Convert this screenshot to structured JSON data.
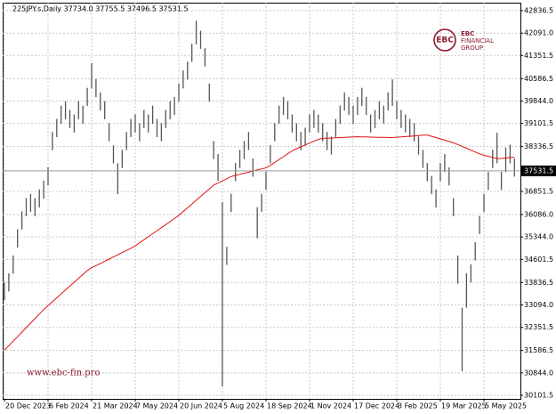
{
  "chart_data": {
    "type": "ohlc",
    "title": "225JPY.s,Daily  37734.0 37755.5 37496.5 37531.5",
    "watermark": "www.ebc-fin.pro",
    "logo": [
      "EBC",
      "FINANCIAL",
      "GROUP"
    ],
    "color": "#555555",
    "grid": true,
    "categories": [
      "20 Dec 2023",
      null,
      null,
      null,
      null,
      null,
      null,
      null,
      null,
      null,
      "6 Feb 2024",
      null,
      null,
      null,
      null,
      null,
      null,
      null,
      null,
      null,
      "21 Mar 2024",
      null,
      null,
      null,
      null,
      null,
      null,
      null,
      null,
      null,
      "7 May 2024",
      null,
      null,
      null,
      null,
      null,
      null,
      null,
      null,
      null,
      "20 Jun 2024",
      null,
      null,
      null,
      null,
      null,
      null,
      null,
      null,
      null,
      "5 Aug 2024",
      null,
      null,
      null,
      null,
      null,
      null,
      null,
      null,
      null,
      "18 Sep 2024",
      null,
      null,
      null,
      null,
      null,
      null,
      null,
      null,
      null,
      "1 Nov 2024",
      null,
      null,
      null,
      null,
      null,
      null,
      null,
      null,
      null,
      "17 Dec 2024",
      null,
      null,
      null,
      null,
      null,
      null,
      null,
      null,
      null,
      "3 Feb 2025",
      null,
      null,
      null,
      null,
      null,
      null,
      null,
      null,
      null,
      "19 Mar 2025",
      null,
      null,
      null,
      null,
      null,
      null,
      null,
      null,
      null,
      "5 May 2025",
      null,
      null,
      null,
      null,
      null,
      null,
      null
    ],
    "high": [
      33850,
      34140,
      34730,
      35600,
      36190,
      36630,
      36770,
      36630,
      36920,
      37210,
      37650,
      38820,
      39250,
      39690,
      39840,
      39550,
      39400,
      39840,
      39690,
      40280,
      41100,
      40570,
      40130,
      39840,
      39110,
      38380,
      37790,
      38230,
      38820,
      39250,
      39400,
      39110,
      39550,
      39400,
      39690,
      39250,
      39110,
      39550,
      39840,
      39980,
      40420,
      40860,
      41150,
      41740,
      42500,
      42170,
      41590,
      40420,
      38520,
      38090,
      36500,
      35020,
      36770,
      37790,
      38230,
      38520,
      38820,
      37940,
      36330,
      36770,
      37500,
      38380,
      39110,
      39690,
      39980,
      39840,
      39400,
      39110,
      38820,
      38960,
      39400,
      39550,
      39400,
      39110,
      38820,
      38670,
      39250,
      39690,
      40130,
      39980,
      39690,
      39980,
      40280,
      39980,
      39400,
      39550,
      39840,
      39690,
      40130,
      40560,
      39840,
      39550,
      39400,
      39250,
      39110,
      38670,
      38230,
      37790,
      37360,
      36920,
      37790,
      38090,
      37650,
      36630,
      34730,
      33000,
      34140,
      34440,
      35170,
      36040,
      36770,
      37500,
      38230,
      38800,
      37500,
      38300,
      38400,
      37940
    ],
    "low": [
      33250,
      33540,
      34130,
      35000,
      35590,
      36030,
      36170,
      36030,
      36320,
      36610,
      37050,
      38220,
      38650,
      39090,
      39240,
      38950,
      38800,
      39240,
      39090,
      39680,
      40260,
      39970,
      39530,
      39240,
      38510,
      37780,
      36760,
      37630,
      38220,
      38650,
      38800,
      38510,
      38950,
      38800,
      39090,
      38650,
      38510,
      38950,
      39240,
      39380,
      39820,
      40260,
      40550,
      41140,
      41720,
      41570,
      40990,
      39820,
      37920,
      37200,
      30400,
      34420,
      36170,
      37190,
      37630,
      37920,
      38220,
      37340,
      35300,
      36170,
      36900,
      37780,
      38510,
      39090,
      39380,
      39240,
      38800,
      38510,
      38220,
      38360,
      38800,
      38950,
      38800,
      38510,
      38220,
      38070,
      38650,
      39090,
      39530,
      39380,
      39090,
      39380,
      39680,
      39380,
      38800,
      38950,
      39240,
      39090,
      39530,
      39680,
      39240,
      38950,
      38800,
      38650,
      38510,
      38070,
      37630,
      37190,
      36760,
      36320,
      37190,
      37490,
      37050,
      36030,
      33800,
      30900,
      33000,
      33840,
      34570,
      35440,
      36170,
      36900,
      37630,
      37780,
      36900,
      37490,
      37780,
      37340
    ],
    "moving_average": {
      "color": "#e01010",
      "values": [
        31595,
        31745,
        31894,
        32043,
        32193,
        32342,
        32492,
        32641,
        32790,
        32940,
        33072,
        33201,
        33330,
        33459,
        33588,
        33716,
        33845,
        33974,
        34103,
        34232,
        34325,
        34397,
        34468,
        34540,
        34611,
        34683,
        34754,
        34826,
        34897,
        34969,
        35052,
        35152,
        35252,
        35352,
        35452,
        35552,
        35652,
        35752,
        35852,
        35952,
        36059,
        36184,
        36309,
        36434,
        36559,
        36684,
        36809,
        36934,
        37060,
        37127,
        37199,
        37271,
        37344,
        37381,
        37417,
        37453,
        37489,
        37525,
        37561,
        37597,
        37632,
        37715,
        37811,
        37906,
        38002,
        38097,
        38192,
        38265,
        38327,
        38389,
        38451,
        38513,
        38575,
        38607,
        38614,
        38621,
        38628,
        38635,
        38642,
        38649,
        38656,
        38660,
        38657,
        38654,
        38650,
        38646,
        38643,
        38639,
        38636,
        38635,
        38645,
        38656,
        38667,
        38678,
        38688,
        38699,
        38710,
        38720,
        38677,
        38634,
        38591,
        38548,
        38505,
        38461,
        38405,
        38343,
        38281,
        38219,
        38157,
        38095,
        38048,
        38012,
        37976,
        37940,
        37942,
        37956,
        37971,
        37985
      ]
    },
    "last_price": 37531.5,
    "ylim": [
      29985,
      43099
    ],
    "yticks": [
      42836.5,
      {
        "value": 42091.0,
        "label": "42091.0"
      },
      41351.5,
      40586.5,
      {
        "value": 39844.0,
        "label": "39844.0"
      },
      39101.5,
      38336.5,
      36851.5,
      {
        "value": 36086.0,
        "label": "36086.0"
      },
      {
        "value": 35344.0,
        "label": "35344.0"
      },
      34601.5,
      33836.5,
      {
        "value": 33094.0,
        "label": "33094.0"
      },
      32351.5,
      31586.5,
      {
        "value": 30844.0,
        "label": "30844.0"
      },
      30101.5
    ]
  }
}
